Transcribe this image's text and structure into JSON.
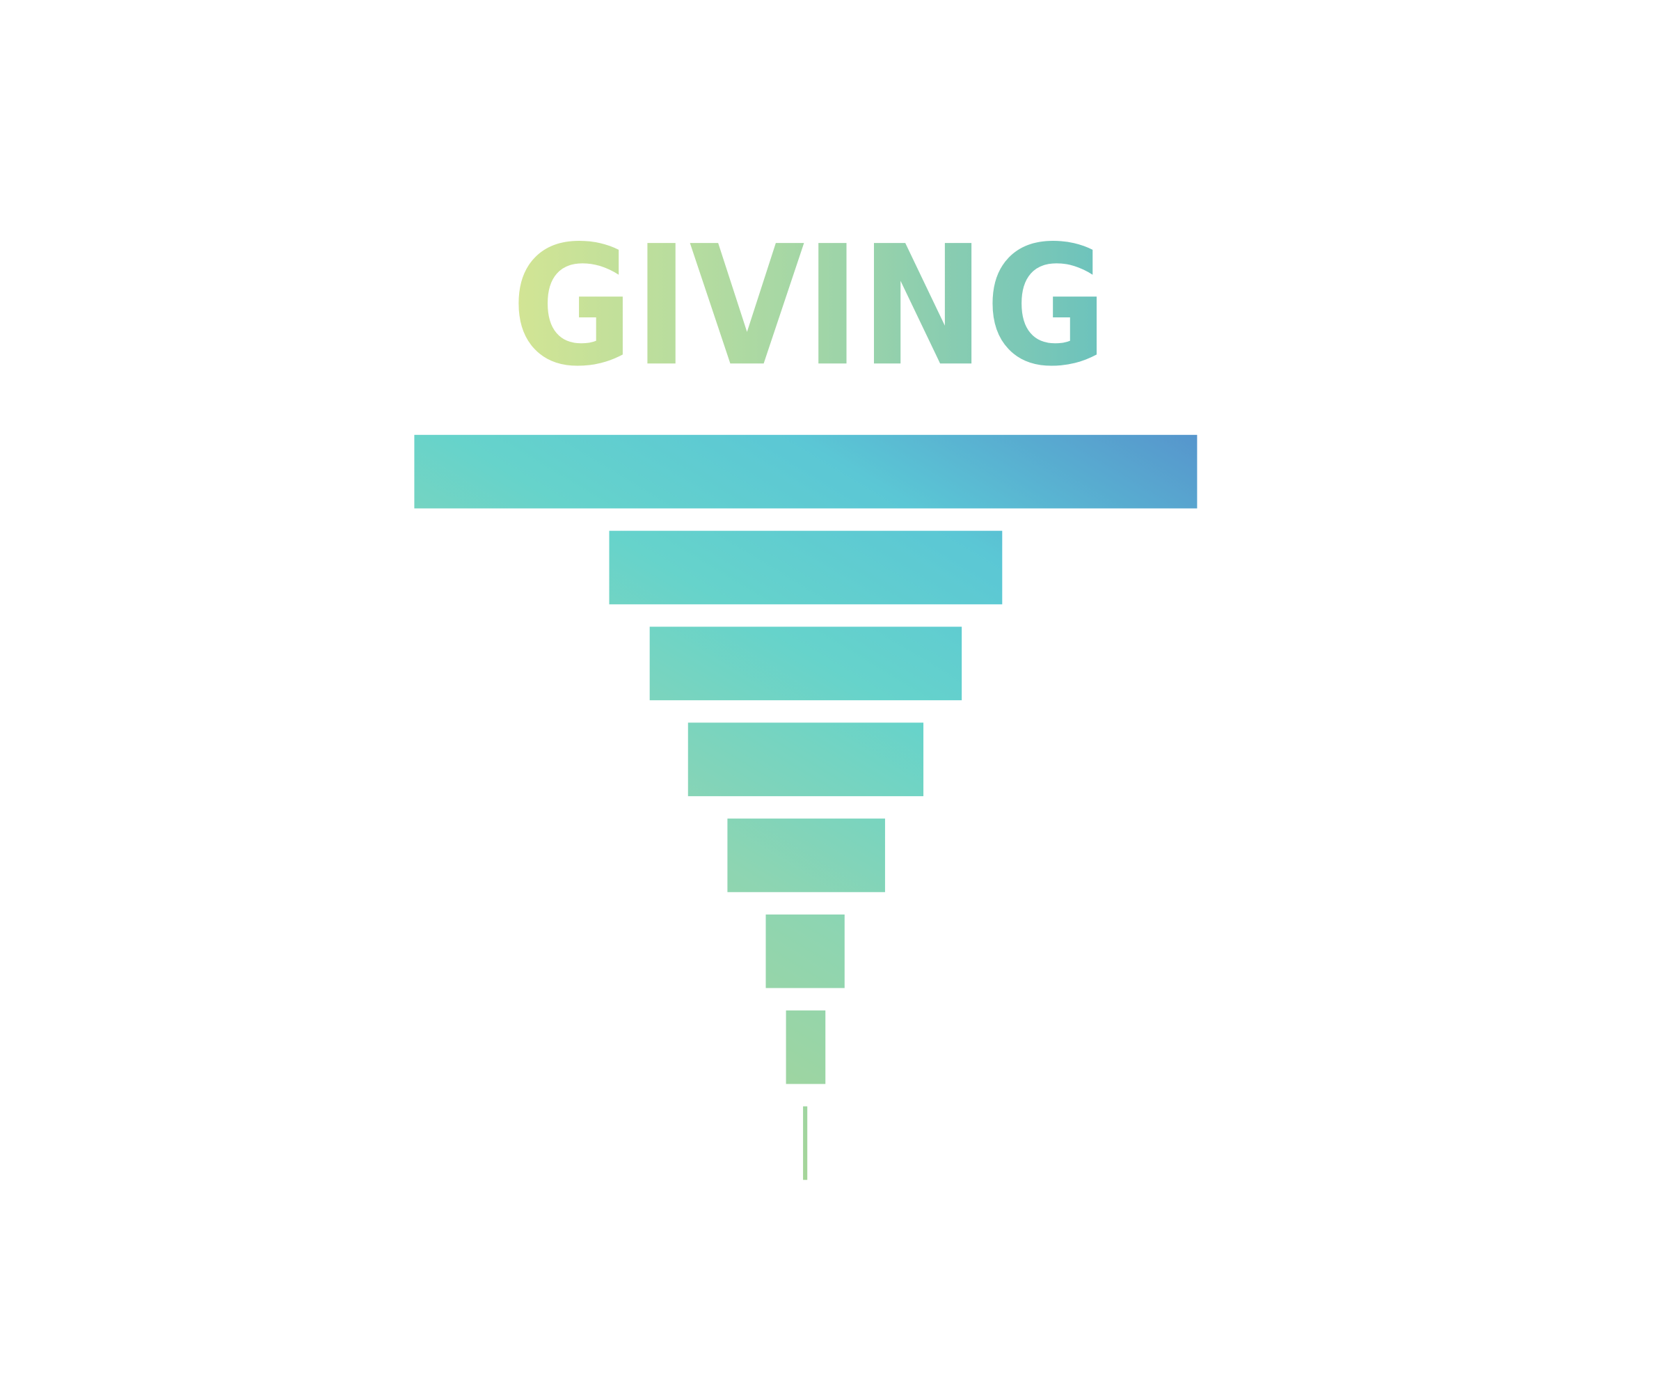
{
  "title": "GIVING"
}
